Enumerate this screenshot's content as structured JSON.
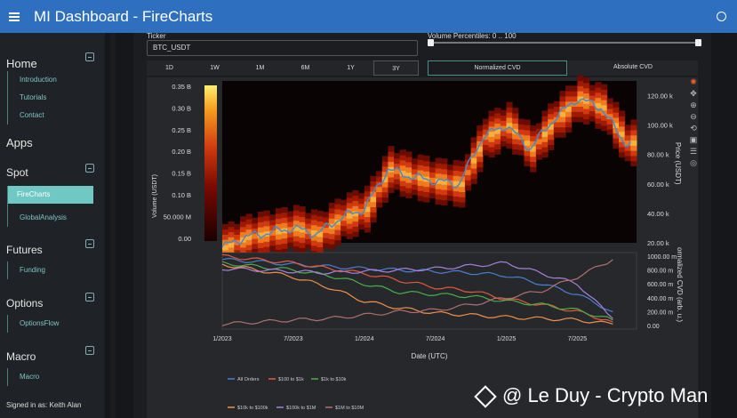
{
  "app": {
    "title": "MI Dashboard  -  FireCharts"
  },
  "sidebar": {
    "home": {
      "title": "Home",
      "items": [
        "Introduction",
        "Tutorials",
        "Contact"
      ]
    },
    "apps": {
      "title": "Apps"
    },
    "spot": {
      "title": "Spot",
      "items": [
        "FireCharts",
        "GlobalAnalysis"
      ],
      "active": "FireCharts"
    },
    "futures": {
      "title": "Futures",
      "items": [
        "Funding"
      ]
    },
    "options": {
      "title": "Options",
      "items": [
        "OptionsFlow"
      ]
    },
    "macro": {
      "title": "Macro",
      "items": [
        "Macro"
      ]
    },
    "signed_in": "Signed in as: Keith Alan"
  },
  "controls": {
    "ticker_label": "Ticker",
    "ticker_value": "BTC_USDT",
    "volume_percentiles_label": "Volume Percentiles: 0 .. 100",
    "periods": [
      "1D",
      "1W",
      "1M",
      "6M",
      "1Y",
      "3Y"
    ],
    "selected_period": "3Y",
    "modes": [
      "Normalized CVD",
      "Absolute CVD"
    ],
    "selected_mode": "Normalized CVD"
  },
  "chart_data": [
    {
      "type": "heatmap",
      "ylabel_left": "Volume (USDT)",
      "ylabel_right": "Price (USDT)",
      "colorbar_ticks": [
        "0.35 B",
        "0.30 B",
        "0.25 B",
        "0.20 B",
        "0.15 B",
        "0.10 B",
        "50.000 M",
        "0.00"
      ],
      "price_ticks": [
        "120.00 k",
        "100.00 k",
        "80.00 k",
        "60.00 k",
        "40.00 k",
        "20.00 k"
      ],
      "price_series_color": "#3f8bd4",
      "price": [
        {
          "x": "2023-01",
          "y": 17
        },
        {
          "x": "2023-03",
          "y": 24
        },
        {
          "x": "2023-05",
          "y": 27
        },
        {
          "x": "2023-07",
          "y": 30
        },
        {
          "x": "2023-09",
          "y": 26
        },
        {
          "x": "2023-11",
          "y": 37
        },
        {
          "x": "2024-01",
          "y": 43
        },
        {
          "x": "2024-03",
          "y": 70
        },
        {
          "x": "2024-05",
          "y": 65
        },
        {
          "x": "2024-07",
          "y": 62
        },
        {
          "x": "2024-09",
          "y": 60
        },
        {
          "x": "2024-11",
          "y": 92
        },
        {
          "x": "2025-01",
          "y": 100
        },
        {
          "x": "2025-03",
          "y": 84
        },
        {
          "x": "2025-05",
          "y": 104
        },
        {
          "x": "2025-07",
          "y": 118
        },
        {
          "x": "2025-09",
          "y": 112
        },
        {
          "x": "2025-11",
          "y": 88
        }
      ]
    },
    {
      "type": "line",
      "xlabel": "Date (UTC)",
      "ylabel": "ormalized CVD (arb. u.)",
      "x_ticks": [
        "1/2023",
        "7/2023",
        "1/2024",
        "7/2024",
        "1/2025",
        "7/2025"
      ],
      "y_ticks": [
        "1000.00 m",
        "800.00 m",
        "600.00 m",
        "400.00 m",
        "200.00 m",
        "0.00"
      ],
      "x": [
        "2023-01",
        "2023-04",
        "2023-07",
        "2023-10",
        "2024-01",
        "2024-04",
        "2024-07",
        "2024-10",
        "2025-01",
        "2025-04",
        "2025-07",
        "2025-10"
      ],
      "series": [
        {
          "name": "All Orders",
          "color": "#4a7fd0",
          "values": [
            0.95,
            0.92,
            0.88,
            0.85,
            0.82,
            0.8,
            0.78,
            0.76,
            0.72,
            0.6,
            0.45,
            0.2
          ]
        },
        {
          "name": "$100 to $1k",
          "color": "#e8583a",
          "values": [
            1.0,
            0.95,
            0.9,
            0.82,
            0.75,
            0.65,
            0.55,
            0.5,
            0.38,
            0.3,
            0.2,
            0.05
          ]
        },
        {
          "name": "$1k to $10k",
          "color": "#4ab04a",
          "values": [
            0.9,
            0.85,
            0.8,
            0.72,
            0.6,
            0.48,
            0.45,
            0.42,
            0.35,
            0.3,
            0.22,
            0.08
          ]
        },
        {
          "name": "$10k to $100k",
          "color": "#f0904a",
          "values": [
            0.88,
            0.8,
            0.7,
            0.55,
            0.35,
            0.25,
            0.18,
            0.15,
            0.12,
            0.1,
            0.08,
            0.02
          ]
        },
        {
          "name": "$100k to $1M",
          "color": "#a77fd8",
          "values": [
            0.82,
            0.8,
            0.78,
            0.76,
            0.78,
            0.8,
            0.82,
            0.86,
            0.9,
            0.75,
            0.6,
            0.1
          ]
        },
        {
          "name": "$1M to $10M",
          "color": "#b07070",
          "values": [
            0.02,
            0.05,
            0.08,
            0.1,
            0.15,
            0.2,
            0.22,
            0.3,
            0.4,
            0.5,
            0.7,
            0.95
          ]
        }
      ]
    }
  ],
  "watermark": "@ Le Duy - Crypto Man"
}
